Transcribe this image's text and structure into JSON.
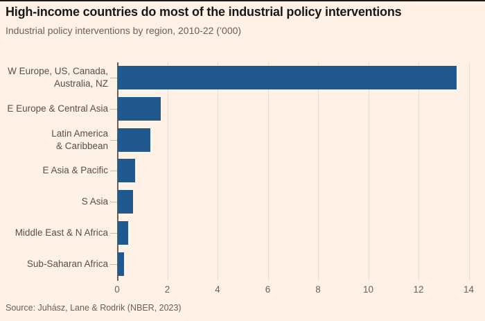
{
  "header": {
    "title": "High-income countries do most of the industrial policy interventions",
    "subtitle": "Industrial policy interventions by region, 2010-22 (’000)"
  },
  "footer": {
    "source": "Source: Juhász, Lane & Rodrik (NBER, 2023)"
  },
  "colors": {
    "background": "#FFF1E5",
    "bar": "#21598E",
    "axis_line": "#66605B",
    "gridline": "#ECDCCB",
    "category_tick": "#C6BAAD",
    "title_text": "#1A1817",
    "muted_text": "#66605B",
    "category_text": "#55504B",
    "top_rule": "#1A1817"
  },
  "chart_data": {
    "type": "bar",
    "orientation": "horizontal",
    "title": "High-income countries do most of the industrial policy interventions",
    "subtitle": "Industrial policy interventions by region, 2010-22 (’000)",
    "categories": [
      "W Europe, US, Canada,\nAustralia, NZ",
      "E Europe & Central Asia",
      "Latin America\n& Caribbean",
      "E Asia & Pacific",
      "S Asia",
      "Middle East & N Africa",
      "Sub-Saharan Africa"
    ],
    "values": [
      13.5,
      1.7,
      1.3,
      0.7,
      0.6,
      0.4,
      0.25
    ],
    "xlim": [
      0,
      14
    ],
    "xticks": [
      0,
      2,
      4,
      6,
      8,
      10,
      12,
      14
    ],
    "grid": "vertical-gridlines-only",
    "legend": "none",
    "source": "Source: Juhász, Lane & Rodrik (NBER, 2023)"
  }
}
